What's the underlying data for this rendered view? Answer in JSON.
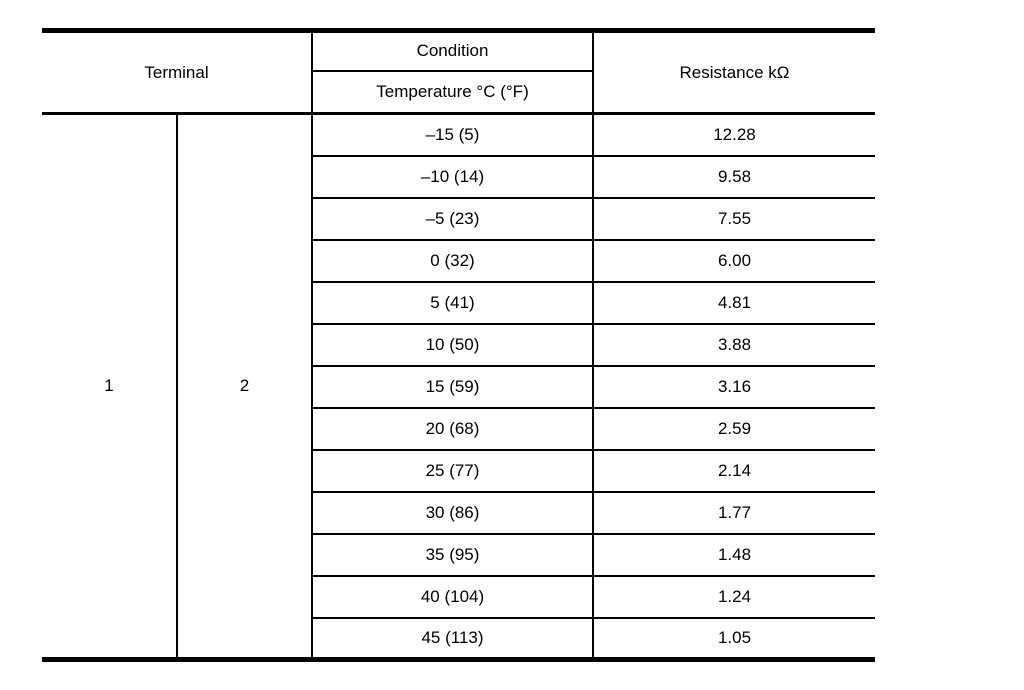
{
  "table": {
    "header": {
      "terminal": "Terminal",
      "condition": "Condition",
      "temperature": "Temperature °C (°F)",
      "resistance": "Resistance kΩ"
    },
    "terminals": [
      "1",
      "2"
    ],
    "rows": [
      {
        "temp": "–15 (5)",
        "resistance": "12.28"
      },
      {
        "temp": "–10 (14)",
        "resistance": "9.58"
      },
      {
        "temp": "–5 (23)",
        "resistance": "7.55"
      },
      {
        "temp": "0 (32)",
        "resistance": "6.00"
      },
      {
        "temp": "5 (41)",
        "resistance": "4.81"
      },
      {
        "temp": "10 (50)",
        "resistance": "3.88"
      },
      {
        "temp": "15 (59)",
        "resistance": "3.16"
      },
      {
        "temp": "20 (68)",
        "resistance": "2.59"
      },
      {
        "temp": "25 (77)",
        "resistance": "2.14"
      },
      {
        "temp": "30 (86)",
        "resistance": "1.77"
      },
      {
        "temp": "35 (95)",
        "resistance": "1.48"
      },
      {
        "temp": "40 (104)",
        "resistance": "1.24"
      },
      {
        "temp": "45 (113)",
        "resistance": "1.05"
      }
    ]
  },
  "colors": {
    "line": "#000000",
    "text": "#000000",
    "background": "#ffffff"
  }
}
